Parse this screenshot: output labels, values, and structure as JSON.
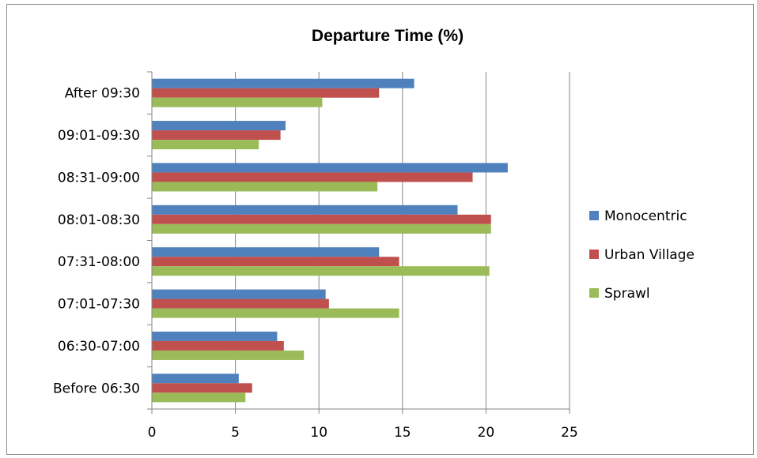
{
  "chart_data": {
    "type": "bar",
    "orientation": "horizontal",
    "title": "Departure Time (%)",
    "categories": [
      "Before 06:30",
      "06:30-07:00",
      "07:01-07:30",
      "07:31-08:00",
      "08:01-08:30",
      "08:31-09:00",
      "09:01-09:30",
      "After 09:30"
    ],
    "series": [
      {
        "name": "Monocentric",
        "color": "#4f81bd",
        "values": [
          5.2,
          7.5,
          10.4,
          13.6,
          18.3,
          21.3,
          8.0,
          15.7
        ]
      },
      {
        "name": "Urban Village",
        "color": "#c0504d",
        "values": [
          6.0,
          7.9,
          10.6,
          14.8,
          20.3,
          19.2,
          7.7,
          13.6
        ]
      },
      {
        "name": "Sprawl",
        "color": "#9bbb59",
        "values": [
          5.6,
          9.1,
          14.8,
          20.2,
          20.3,
          13.5,
          6.4,
          10.2
        ]
      }
    ],
    "xlim": [
      0,
      25
    ],
    "xticks": [
      "0",
      "5",
      "10",
      "15",
      "20",
      "25"
    ],
    "grid": true,
    "legend_position": "right"
  }
}
